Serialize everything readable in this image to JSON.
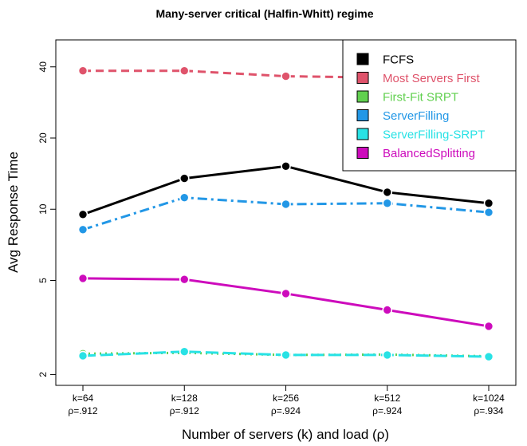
{
  "chart_data": {
    "type": "line",
    "title": "Many-server critical (Halfin-Whitt) regime",
    "xlabel": "Number of servers (k) and load (ρ)",
    "ylabel": "Avg Response Time",
    "y_scale": "log",
    "yticks": [
      2,
      5,
      10,
      20,
      40
    ],
    "ylim": [
      1.8,
      52
    ],
    "categories": [
      [
        "k=64",
        "ρ=.912"
      ],
      [
        "k=128",
        "ρ=.912"
      ],
      [
        "k=256",
        "ρ=.924"
      ],
      [
        "k=512",
        "ρ=.924"
      ],
      [
        "k=1024",
        "ρ=.934"
      ]
    ],
    "legend_position": "top-right",
    "series": [
      {
        "name": "FCFS",
        "color": "#000000",
        "dash": "solid",
        "values": [
          9.5,
          13.5,
          15.2,
          11.8,
          10.6
        ]
      },
      {
        "name": "Most Servers First",
        "color": "#df536b",
        "dash": "dashed",
        "values": [
          38.5,
          38.5,
          36.5,
          36.0,
          35.5
        ]
      },
      {
        "name": "First-Fit SRPT",
        "color": "#61d04f",
        "dash": "dotted",
        "values": [
          2.45,
          2.47,
          2.42,
          2.43,
          2.39
        ]
      },
      {
        "name": "ServerFilling",
        "color": "#2297e6",
        "dash": "dashdot",
        "values": [
          8.2,
          11.2,
          10.5,
          10.6,
          9.7
        ]
      },
      {
        "name": "ServerFilling-SRPT",
        "color": "#28e2e5",
        "dash": "longdash",
        "values": [
          2.4,
          2.5,
          2.42,
          2.42,
          2.38
        ]
      },
      {
        "name": "BalancedSplitting",
        "color": "#cd0bbc",
        "dash": "solid",
        "values": [
          5.1,
          5.05,
          4.4,
          3.75,
          3.2
        ]
      }
    ]
  }
}
